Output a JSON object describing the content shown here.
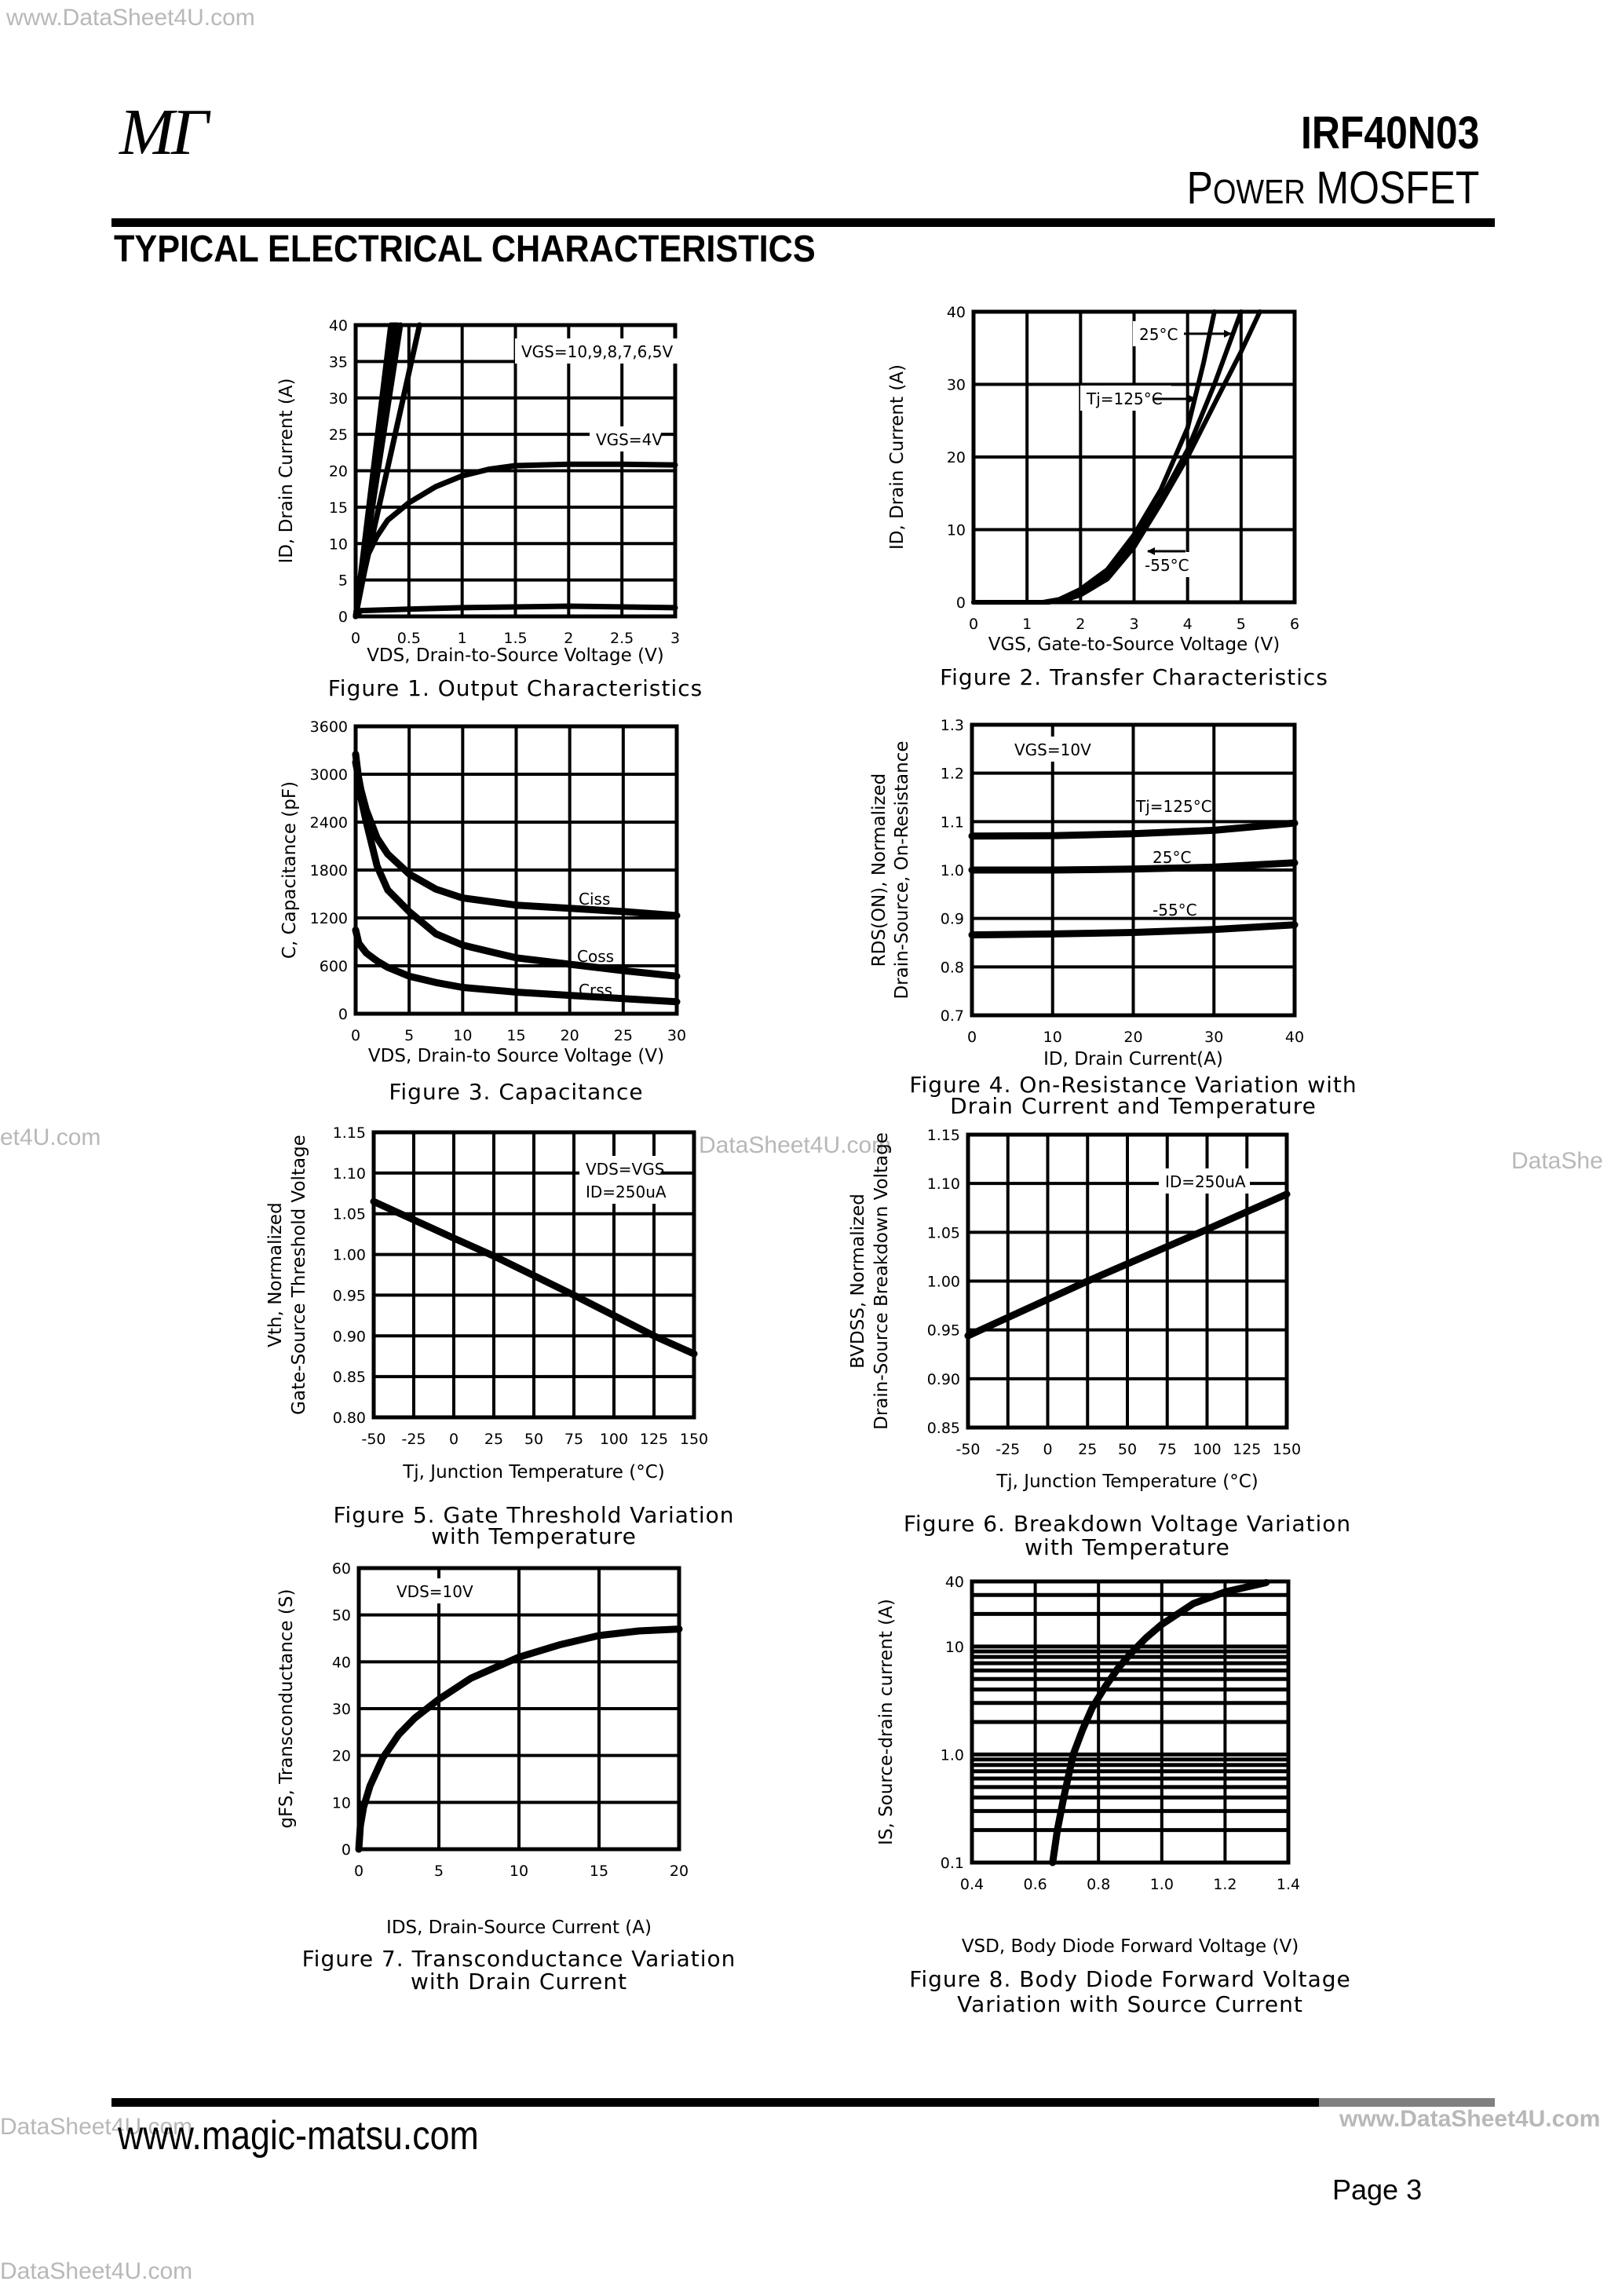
{
  "watermarks": [
    "www.DataSheet4U.com",
    "et4U.com",
    "DataSheet4U.com",
    "DataShe",
    "DataSheet4U.com",
    "www.DataSheet4U.com",
    "DataSheet4U.com"
  ],
  "header": {
    "logo": "MΓ",
    "part_number": "IRF40N03",
    "subtitle_first": "P",
    "subtitle_smallcaps": "OWER",
    "subtitle_rest": " MOSFET",
    "section_title": "TYPICAL ELECTRICAL CHARACTERISTICS"
  },
  "footer": {
    "website": "www.magic-matsu.com",
    "page": "Page 3"
  },
  "chart_data": [
    {
      "type": "line",
      "title": "Figure 1. Output Characteristics",
      "xlabel": "VDS, Drain-to-Source Voltage (V)",
      "ylabel": [
        "ID, Drain Current (A)"
      ],
      "xlim": [
        0,
        3
      ],
      "ylim": [
        0,
        40
      ],
      "xticks": [
        0,
        0.5,
        1,
        1.5,
        2,
        2.5,
        3
      ],
      "xtick_labels": [
        "0",
        "0.5",
        "1",
        "1.5",
        "2",
        "2.5",
        "3"
      ],
      "yticks": [
        0,
        5,
        10,
        15,
        20,
        25,
        30,
        35,
        40
      ],
      "ytick_labels": [
        "0",
        "5",
        "10",
        "15",
        "20",
        "25",
        "30",
        "35",
        "40"
      ],
      "grid": true,
      "annotations": [
        "VGS=10,9,8,7,6,5V",
        "VGS=4V"
      ],
      "series": [
        {
          "x": [
            0,
            0.33
          ],
          "y": [
            0,
            40
          ]
        },
        {
          "x": [
            0,
            0.35
          ],
          "y": [
            0,
            40
          ]
        },
        {
          "x": [
            0,
            0.37
          ],
          "y": [
            0,
            40
          ]
        },
        {
          "x": [
            0,
            0.39
          ],
          "y": [
            0,
            40
          ]
        },
        {
          "x": [
            0,
            0.42
          ],
          "y": [
            0,
            40
          ]
        },
        {
          "x": [
            0,
            0.08,
            0.6
          ],
          "y": [
            0,
            6,
            40
          ]
        },
        {
          "x": [
            0,
            0.05,
            0.1,
            0.2,
            0.3,
            0.5,
            0.75,
            1,
            1.25,
            1.5,
            2,
            2.5,
            3
          ],
          "y": [
            0,
            5,
            8,
            11,
            13.2,
            15.6,
            17.8,
            19.3,
            20.2,
            20.7,
            20.9,
            20.9,
            20.8
          ]
        },
        {
          "x": [
            0,
            0.05,
            0.5,
            1,
            2,
            3
          ],
          "y": [
            0,
            0.8,
            1.0,
            1.2,
            1.4,
            1.2
          ]
        }
      ]
    },
    {
      "type": "line",
      "title": "Figure 2. Transfer Characteristics",
      "xlabel": "VGS, Gate-to-Source Voltage (V)",
      "ylabel": [
        "ID, Drain Current (A)"
      ],
      "xlim": [
        0,
        6
      ],
      "ylim": [
        0,
        40
      ],
      "xticks": [
        0,
        1,
        2,
        3,
        4,
        5,
        6
      ],
      "xtick_labels": [
        "0",
        "1",
        "2",
        "3",
        "4",
        "5",
        "6"
      ],
      "yticks": [
        0,
        10,
        20,
        30,
        40
      ],
      "ytick_labels": [
        "0",
        "10",
        "20",
        "30",
        "40"
      ],
      "grid": true,
      "annotations": [
        "25°C",
        "Tj=125°C",
        "-55°C"
      ],
      "series": [
        {
          "name": "Tj=125°C",
          "x": [
            0,
            1.3,
            1.6,
            2,
            2.5,
            3,
            3.5,
            4,
            4.3,
            4.5
          ],
          "y": [
            0,
            0,
            0.4,
            1.8,
            4.5,
            9.3,
            15.5,
            24,
            33,
            40
          ]
        },
        {
          "name": "25°C",
          "x": [
            0,
            1.35,
            1.6,
            2,
            2.5,
            3,
            3.5,
            4,
            4.5,
            5
          ],
          "y": [
            0,
            0,
            0.3,
            1.4,
            3.8,
            8.3,
            14.2,
            21,
            30,
            40
          ]
        },
        {
          "name": "-55°C",
          "x": [
            0,
            1.4,
            1.7,
            2,
            2.5,
            3,
            3.5,
            4,
            4.5,
            5,
            5.35
          ],
          "y": [
            0,
            0,
            0.3,
            1.0,
            3.2,
            7.6,
            13.6,
            20,
            27.3,
            34.5,
            40
          ]
        }
      ]
    },
    {
      "type": "line",
      "title": "Figure 3. Capacitance",
      "xlabel": "VDS, Drain-to Source Voltage (V)",
      "ylabel": [
        "C, Capacitance (pF)"
      ],
      "xlim": [
        0,
        30
      ],
      "ylim": [
        0,
        3600
      ],
      "xticks": [
        0,
        5,
        10,
        15,
        20,
        25,
        30
      ],
      "xtick_labels": [
        "0",
        "5",
        "10",
        "15",
        "20",
        "25",
        "30"
      ],
      "yticks": [
        0,
        600,
        1200,
        1800,
        2400,
        3000,
        3600
      ],
      "ytick_labels": [
        "0",
        "600",
        "1200",
        "1800",
        "2400",
        "3000",
        "3600"
      ],
      "grid": true,
      "annotations": [
        "Ciss",
        "Coss",
        "Crss"
      ],
      "series": [
        {
          "name": "Ciss",
          "x": [
            0,
            0.5,
            1,
            2,
            3,
            5,
            7.5,
            10,
            15,
            20,
            25,
            30
          ],
          "y": [
            3150,
            2800,
            2550,
            2200,
            2000,
            1750,
            1560,
            1450,
            1360,
            1320,
            1280,
            1230
          ]
        },
        {
          "name": "Coss",
          "x": [
            0,
            0.5,
            1,
            2,
            3,
            5,
            7.5,
            10,
            15,
            20,
            25,
            30
          ],
          "y": [
            3250,
            2700,
            2400,
            1850,
            1550,
            1280,
            1000,
            860,
            700,
            620,
            540,
            470
          ]
        },
        {
          "name": "Crss",
          "x": [
            0,
            0.3,
            1,
            2,
            3,
            5,
            7.5,
            10,
            15,
            20,
            25,
            30
          ],
          "y": [
            1050,
            880,
            760,
            660,
            580,
            470,
            390,
            330,
            270,
            230,
            190,
            150
          ]
        }
      ]
    },
    {
      "type": "line",
      "title": "Figure 4. On-Resistance Variation with\nDrain Current and Temperature",
      "xlabel": "ID, Drain Current(A)",
      "ylabel": [
        "RDS(ON), Normalized",
        "Drain-Source, On-Resistance"
      ],
      "xlim": [
        0,
        40
      ],
      "ylim": [
        0.7,
        1.3
      ],
      "xticks": [
        0,
        10,
        20,
        30,
        40
      ],
      "xtick_labels": [
        "0",
        "10",
        "20",
        "30",
        "40"
      ],
      "yticks": [
        0.7,
        0.8,
        0.9,
        1.0,
        1.1,
        1.2,
        1.3
      ],
      "ytick_labels": [
        "0.7",
        "0.8",
        "0.9",
        "1.0",
        "1.1",
        "1.2",
        "1.3"
      ],
      "grid": true,
      "annotations": [
        "VGS=10V",
        "Tj=125°C",
        "25°C",
        "-55°C"
      ],
      "series": [
        {
          "name": "Tj=125°C",
          "x": [
            0,
            10,
            20,
            30,
            40
          ],
          "y": [
            1.07,
            1.071,
            1.075,
            1.082,
            1.097
          ]
        },
        {
          "name": "25°C",
          "x": [
            0,
            10,
            20,
            30,
            40
          ],
          "y": [
            1.0,
            1.0,
            1.002,
            1.006,
            1.015
          ]
        },
        {
          "name": "-55°C",
          "x": [
            0,
            10,
            20,
            30,
            40
          ],
          "y": [
            0.866,
            0.868,
            0.871,
            0.877,
            0.887
          ]
        }
      ]
    },
    {
      "type": "line",
      "title": "Figure 5. Gate Threshold Variation\nwith Temperature",
      "xlabel": "Tj, Junction Temperature (°C)",
      "ylabel": [
        "Vth, Normalized",
        "Gate-Source Threshold Voltage"
      ],
      "xlim": [
        -50,
        150
      ],
      "ylim": [
        0.8,
        1.15
      ],
      "xticks": [
        -50,
        -25,
        0,
        25,
        50,
        75,
        100,
        125,
        150
      ],
      "xtick_labels": [
        "-50",
        "-25",
        "0",
        "25",
        "50",
        "75",
        "100",
        "125",
        "150"
      ],
      "yticks": [
        0.8,
        0.85,
        0.9,
        0.95,
        1.0,
        1.05,
        1.1,
        1.15
      ],
      "ytick_labels": [
        "0.80",
        "0.85",
        "0.90",
        "0.95",
        "1.00",
        "1.05",
        "1.10",
        "1.15"
      ],
      "grid": true,
      "annotations": [
        "VDS=VGS",
        "ID=250uA"
      ],
      "series": [
        {
          "x": [
            -50,
            0,
            25,
            75,
            125,
            150
          ],
          "y": [
            1.065,
            1.02,
            0.998,
            0.95,
            0.9,
            0.878
          ]
        }
      ]
    },
    {
      "type": "line",
      "title": "Figure 6. Breakdown Voltage Variation\nwith Temperature",
      "xlabel": "Tj, Junction Temperature (°C)",
      "ylabel": [
        "BVDSS, Normalized",
        "Drain-Source Breakdown Voltage"
      ],
      "xlim": [
        -50,
        150
      ],
      "ylim": [
        0.85,
        1.15
      ],
      "xticks": [
        -50,
        -25,
        0,
        25,
        50,
        75,
        100,
        125,
        150
      ],
      "xtick_labels": [
        "-50",
        "-25",
        "0",
        "25",
        "50",
        "75",
        "100",
        "125",
        "150"
      ],
      "yticks": [
        0.85,
        0.9,
        0.95,
        1.0,
        1.05,
        1.1,
        1.15
      ],
      "ytick_labels": [
        "0.85",
        "0.90",
        "0.95",
        "1.00",
        "1.05",
        "1.10",
        "1.15"
      ],
      "grid": true,
      "annotations": [
        "ID=250uA"
      ],
      "series": [
        {
          "x": [
            -50,
            25,
            100,
            150
          ],
          "y": [
            0.944,
            1.0,
            1.053,
            1.089
          ]
        }
      ]
    },
    {
      "type": "line",
      "title": "Figure 7. Transconductance Variation\nwith Drain Current",
      "xlabel": "IDS, Drain-Source Current (A)",
      "ylabel": [
        "gFS, Transconductance (S)"
      ],
      "xlim": [
        0,
        20
      ],
      "ylim": [
        0,
        60
      ],
      "xticks": [
        0,
        5,
        10,
        15,
        20
      ],
      "xtick_labels": [
        "0",
        "5",
        "10",
        "15",
        "20"
      ],
      "yticks": [
        0,
        10,
        20,
        30,
        40,
        50,
        60
      ],
      "ytick_labels": [
        "0",
        "10",
        "20",
        "30",
        "40",
        "50",
        "60"
      ],
      "grid": true,
      "annotations": [
        "VDS=10V"
      ],
      "series": [
        {
          "x": [
            0,
            0.1,
            0.3,
            0.7,
            1.5,
            2.5,
            3.5,
            5,
            7,
            10,
            12.5,
            15,
            17.5,
            20
          ],
          "y": [
            0,
            5,
            9,
            13.5,
            19.5,
            24.5,
            28,
            32,
            36.5,
            41,
            43.6,
            45.6,
            46.6,
            47
          ]
        }
      ]
    },
    {
      "type": "line",
      "title": "Figure 8. Body Diode Forward Voltage\nVariation with Source Current",
      "xlabel": "VSD, Body Diode Forward Voltage (V)",
      "ylabel": [
        "IS, Source-drain current (A)"
      ],
      "xlim": [
        0.4,
        1.4
      ],
      "ylim": [
        0.1,
        40
      ],
      "yscale": "log",
      "xticks": [
        0.4,
        0.6,
        0.8,
        1.0,
        1.2,
        1.4
      ],
      "xtick_labels": [
        "0.4",
        "0.6",
        "0.8",
        "1.0",
        "1.2",
        "1.4"
      ],
      "yticks": [
        0.1,
        1.0,
        10,
        40
      ],
      "ytick_labels": [
        "0.1",
        "1.0",
        "10",
        "40"
      ],
      "y_gridlines": [
        0.2,
        0.3,
        0.4,
        0.5,
        0.6,
        0.7,
        0.8,
        0.9,
        1,
        2,
        3,
        4,
        5,
        6,
        7,
        8,
        9,
        10,
        20,
        30,
        40
      ],
      "grid": true,
      "annotations": [],
      "series": [
        {
          "x": [
            0.655,
            0.67,
            0.69,
            0.72,
            0.75,
            0.78,
            0.82,
            0.86,
            0.9,
            0.95,
            1.0,
            1.05,
            1.1,
            1.2,
            1.33
          ],
          "y": [
            0.1,
            0.2,
            0.4,
            1.0,
            1.7,
            2.7,
            4.2,
            6.2,
            8.5,
            12,
            16,
            20,
            25,
            32,
            39
          ]
        }
      ]
    }
  ]
}
